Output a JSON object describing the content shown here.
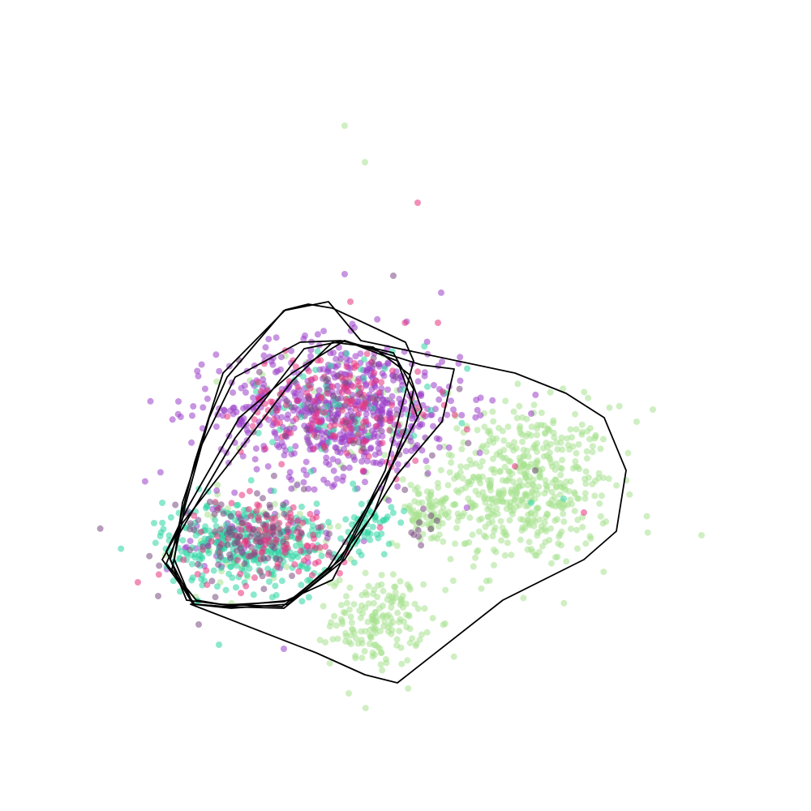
{
  "chart_data": {
    "type": "scatter",
    "axes_visible": false,
    "grid": false,
    "legend": "none",
    "xlim": [
      0,
      10
    ],
    "ylim": [
      0,
      10
    ],
    "point_opacity": 0.55,
    "series": [
      {
        "color": "#a7e28f",
        "clusters": [
          {
            "center": [
              6.45,
              4.0
            ],
            "spread": [
              0.55,
              0.5
            ],
            "n": 520
          },
          {
            "center": [
              4.65,
              2.35
            ],
            "spread": [
              0.28,
              0.28
            ],
            "n": 170
          },
          {
            "center": [
              5.25,
              3.65
            ],
            "spread": [
              0.2,
              0.18
            ],
            "n": 70
          },
          {
            "center": [
              3.2,
              3.3
            ],
            "spread": [
              0.5,
              0.3
            ],
            "n": 60
          },
          {
            "center": [
              4.2,
              4.9
            ],
            "spread": [
              0.6,
              0.4
            ],
            "n": 60
          }
        ],
        "outliers": [
          [
            4.25,
            8.45
          ],
          [
            4.5,
            8.0
          ],
          [
            8.65,
            3.4
          ],
          [
            7.85,
            4.8
          ],
          [
            8.05,
            4.95
          ],
          [
            4.3,
            1.45
          ]
        ]
      },
      {
        "color": "#9b3ec8",
        "clusters": [
          {
            "center": [
              4.2,
              4.95
            ],
            "spread": [
              0.75,
              0.42
            ],
            "n": 640
          },
          {
            "center": [
              3.05,
              3.35
            ],
            "spread": [
              0.5,
              0.25
            ],
            "n": 60
          }
        ],
        "outliers": [
          [
            4.25,
            6.62
          ],
          [
            2.2,
            5.05
          ],
          [
            3.5,
            2.0
          ],
          [
            6.55,
            4.9
          ],
          [
            5.35,
            5.25
          ]
        ]
      },
      {
        "color": "#2ed6a4",
        "clusters": [
          {
            "center": [
              3.05,
              3.3
            ],
            "spread": [
              0.52,
              0.27
            ],
            "n": 330
          },
          {
            "center": [
              4.55,
              3.5
            ],
            "spread": [
              0.15,
              0.17
            ],
            "n": 55
          },
          {
            "center": [
              4.3,
              5.05
            ],
            "spread": [
              0.6,
              0.35
            ],
            "n": 70
          }
        ],
        "outliers": [
          [
            1.9,
            3.55
          ],
          [
            2.7,
            2.05
          ],
          [
            6.55,
            3.8
          ],
          [
            6.95,
            3.85
          ]
        ]
      },
      {
        "color": "#e8337e",
        "clusters": [
          {
            "center": [
              3.3,
              3.35
            ],
            "spread": [
              0.5,
              0.25
            ],
            "n": 120
          },
          {
            "center": [
              4.2,
              5.0
            ],
            "spread": [
              0.6,
              0.35
            ],
            "n": 150
          }
        ],
        "outliers": [
          [
            5.15,
            7.5
          ],
          [
            5.4,
            6.02
          ],
          [
            4.32,
            6.28
          ],
          [
            1.7,
            2.82
          ],
          [
            7.2,
            3.68
          ],
          [
            6.35,
            4.25
          ]
        ]
      },
      {
        "color": "#7a4a82",
        "clusters": [
          {
            "center": [
              3.0,
              3.35
            ],
            "spread": [
              0.55,
              0.28
            ],
            "n": 90
          },
          {
            "center": [
              4.25,
              5.0
            ],
            "spread": [
              0.6,
              0.35
            ],
            "n": 40
          },
          {
            "center": [
              5.2,
              3.45
            ],
            "spread": [
              0.15,
              0.15
            ],
            "n": 10
          }
        ],
        "outliers": [
          [
            4.85,
            6.6
          ],
          [
            6.6,
            4.2
          ],
          [
            2.45,
            2.3
          ],
          [
            1.95,
            2.65
          ]
        ]
      }
    ],
    "hulls": [
      [
        [
          2.3,
          2.6
        ],
        [
          2.1,
          3.1
        ],
        [
          2.4,
          4.3
        ],
        [
          2.75,
          5.4
        ],
        [
          3.52,
          6.18
        ],
        [
          3.8,
          6.25
        ],
        [
          4.1,
          6.2
        ],
        [
          5.0,
          5.78
        ],
        [
          5.1,
          5.55
        ],
        [
          4.75,
          4.2
        ],
        [
          4.2,
          3.1
        ],
        [
          3.48,
          2.52
        ],
        [
          2.7,
          2.55
        ]
      ],
      [
        [
          2.38,
          2.55
        ],
        [
          2.15,
          3.1
        ],
        [
          2.25,
          3.8
        ],
        [
          2.48,
          4.5
        ],
        [
          2.9,
          5.35
        ],
        [
          3.7,
          5.78
        ],
        [
          4.2,
          5.8
        ],
        [
          4.85,
          5.65
        ],
        [
          5.1,
          5.2
        ],
        [
          5.0,
          4.7
        ],
        [
          4.6,
          3.65
        ],
        [
          4.05,
          2.95
        ],
        [
          3.55,
          2.55
        ],
        [
          2.85,
          2.5
        ]
      ],
      [
        [
          2.4,
          2.55
        ],
        [
          2.0,
          3.1
        ],
        [
          2.25,
          3.55
        ],
        [
          2.8,
          4.25
        ],
        [
          3.6,
          5.3
        ],
        [
          4.1,
          5.78
        ],
        [
          4.6,
          5.72
        ],
        [
          5.05,
          5.38
        ],
        [
          5.2,
          4.95
        ],
        [
          4.75,
          4.1
        ],
        [
          4.05,
          3.0
        ],
        [
          3.6,
          2.6
        ],
        [
          2.75,
          2.52
        ]
      ],
      [
        [
          2.42,
          2.6
        ],
        [
          2.05,
          3.05
        ],
        [
          2.2,
          3.4
        ],
        [
          2.9,
          4.6
        ],
        [
          3.75,
          5.7
        ],
        [
          4.25,
          5.8
        ],
        [
          4.9,
          5.55
        ],
        [
          5.15,
          4.85
        ],
        [
          4.55,
          3.75
        ],
        [
          4.1,
          2.85
        ],
        [
          3.5,
          2.58
        ],
        [
          2.78,
          2.54
        ]
      ],
      [
        [
          2.38,
          2.55
        ],
        [
          2.05,
          3.2
        ],
        [
          2.32,
          3.75
        ],
        [
          2.95,
          4.85
        ],
        [
          3.6,
          5.4
        ],
        [
          4.25,
          5.8
        ],
        [
          5.2,
          5.5
        ],
        [
          5.6,
          5.45
        ],
        [
          5.45,
          4.8
        ],
        [
          4.9,
          4.15
        ],
        [
          4.25,
          3.1
        ],
        [
          3.5,
          2.5
        ],
        [
          2.8,
          2.52
        ]
      ],
      [
        [
          2.38,
          2.55
        ],
        [
          2.12,
          2.98
        ],
        [
          2.28,
          3.75
        ],
        [
          2.58,
          4.85
        ],
        [
          2.8,
          5.35
        ],
        [
          3.5,
          6.17
        ],
        [
          4.05,
          6.28
        ],
        [
          4.45,
          5.8
        ],
        [
          6.35,
          5.4
        ],
        [
          6.98,
          5.15
        ],
        [
          7.45,
          4.85
        ],
        [
          7.72,
          4.2
        ],
        [
          7.6,
          3.45
        ],
        [
          7.2,
          3.1
        ],
        [
          6.2,
          2.6
        ],
        [
          4.9,
          1.58
        ],
        [
          4.5,
          1.68
        ],
        [
          3.9,
          1.95
        ],
        [
          2.35,
          2.55
        ]
      ]
    ]
  }
}
